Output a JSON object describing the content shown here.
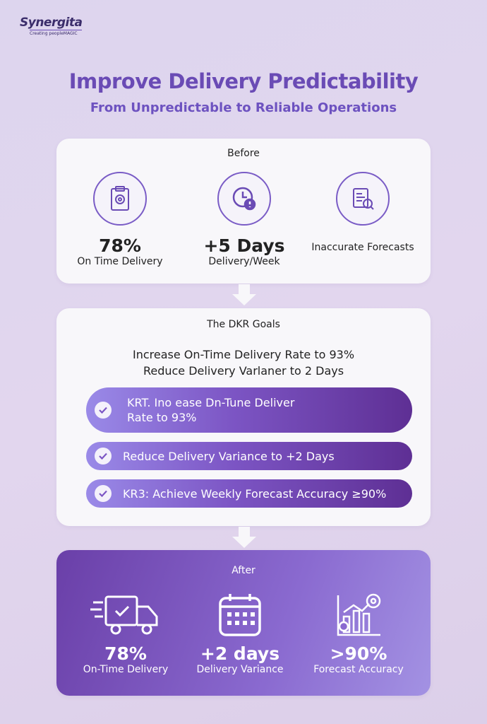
{
  "brand": {
    "name": "Synergita",
    "tagline": "Creating peopleMAGIC"
  },
  "title": "Improve Delivery Predictability",
  "subtitle": "From Unpredictable to Reliable Operations",
  "before": {
    "header": "Before",
    "items": [
      {
        "icon": "clipboard-gear-icon",
        "value": "78%",
        "label": "On Time Delivery"
      },
      {
        "icon": "clock-alert-icon",
        "value": "+5 Days",
        "label": "Delivery/Week"
      },
      {
        "icon": "report-search-icon",
        "value": "",
        "label": "Inaccurate Forecasts"
      }
    ]
  },
  "goals": {
    "header": "The DKR Goals",
    "line1": "Increase On-Time Delivery Rate to 93%",
    "line2": "Reduce Delivery Varlaner to 2 Days",
    "krs": [
      "KRT. Ino ease Dn-Tune Deliver Rate to 93%",
      "Reduce Delivery Variance to +2 Days",
      "KR3: Achieve Weekly Forecast Accuracy ≥90%"
    ]
  },
  "after": {
    "header": "After",
    "items": [
      {
        "icon": "delivery-truck-icon",
        "value": "78%",
        "label": "On-Time Delivery"
      },
      {
        "icon": "calendar-icon",
        "value": "+2 days",
        "label": "Delivery Variance"
      },
      {
        "icon": "chart-target-icon",
        "value": ">90%",
        "label": "Forecast Accuracy"
      }
    ]
  },
  "colors": {
    "accent": "#6a4bb5",
    "after_dark": "#6a3fa8",
    "after_light": "#a392e3"
  }
}
